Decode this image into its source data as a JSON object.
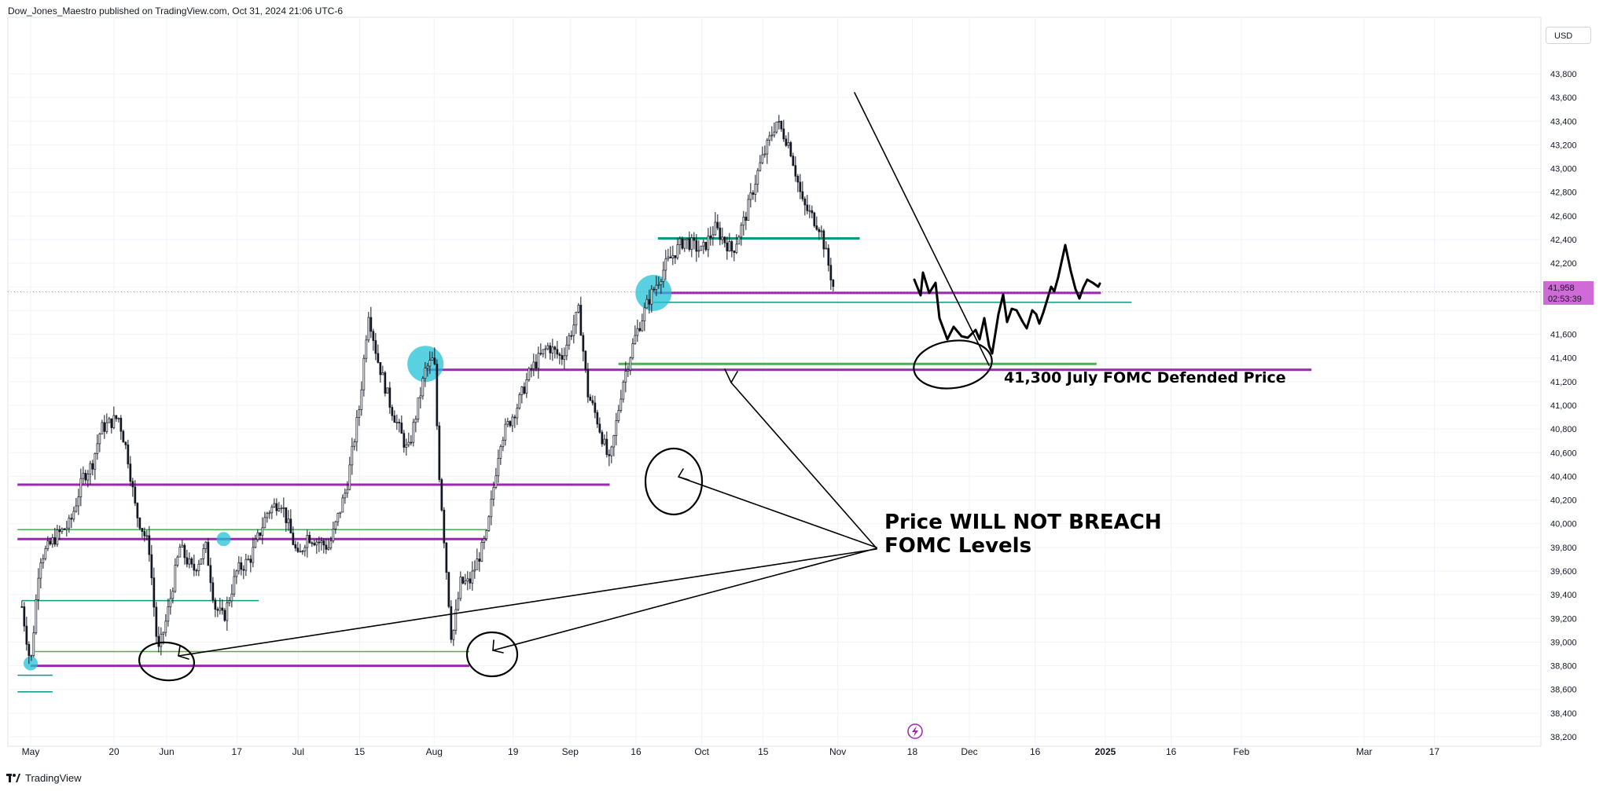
{
  "header": {
    "text": "Dow_Jones_Maestro published on TradingView.com, Oct 31, 2024 21:06 UTC-6"
  },
  "footer": {
    "brand": "TradingView"
  },
  "toolbar": {
    "currency": "USD"
  },
  "last_price": {
    "price": "41,958",
    "countdown": "02:53:39"
  },
  "annotations": {
    "fomc_label": "41,300   July FOMC Defended Price",
    "breach_line1": "Price WILL NOT BREACH",
    "breach_line2": "FOMC Levels"
  },
  "colors": {
    "purple": "#9c27b0",
    "green": "#4caf50",
    "teal": "#089981",
    "cyan": "#22c1d6",
    "ink": "#000000",
    "candle": "#131722",
    "price_box": "#d06ad6"
  },
  "chart_data": {
    "type": "candlestick",
    "ylim": [
      38200,
      44000
    ],
    "y_ticks": [
      43800,
      43600,
      43400,
      43200,
      43000,
      42800,
      42600,
      42400,
      42200,
      42000,
      41800,
      41600,
      41400,
      41200,
      41000,
      40800,
      40600,
      40400,
      40200,
      40000,
      39800,
      39600,
      39400,
      39200,
      39000,
      38800,
      38600,
      38400,
      38200
    ],
    "y_tick_labels": [
      "43,800",
      "43,600",
      "43,400",
      "43,200",
      "43,000",
      "42,800",
      "42,600",
      "42,400",
      "42,200",
      "",
      "",
      "41,600",
      "41,400",
      "41,200",
      "41,000",
      "40,800",
      "40,600",
      "40,400",
      "40,200",
      "40,000",
      "39,800",
      "39,600",
      "39,400",
      "39,200",
      "39,000",
      "38,800",
      "38,600",
      "38,400",
      "38,200"
    ],
    "x_labels": [
      {
        "text": "May",
        "date": "2024-05-01"
      },
      {
        "text": "20",
        "date": "2024-05-20"
      },
      {
        "text": "Jun",
        "date": "2024-06-01"
      },
      {
        "text": "17",
        "date": "2024-06-17"
      },
      {
        "text": "Jul",
        "date": "2024-07-01"
      },
      {
        "text": "15",
        "date": "2024-07-15"
      },
      {
        "text": "Aug",
        "date": "2024-08-01"
      },
      {
        "text": "19",
        "date": "2024-08-19"
      },
      {
        "text": "Sep",
        "date": "2024-09-01"
      },
      {
        "text": "16",
        "date": "2024-09-16"
      },
      {
        "text": "Oct",
        "date": "2024-10-01"
      },
      {
        "text": "15",
        "date": "2024-10-15"
      },
      {
        "text": "Nov",
        "date": "2024-11-01"
      },
      {
        "text": "18",
        "date": "2024-11-18"
      },
      {
        "text": "Dec",
        "date": "2024-12-01"
      },
      {
        "text": "16",
        "date": "2024-12-16"
      },
      {
        "text": "2025",
        "date": "2025-01-01"
      },
      {
        "text": "16",
        "date": "2025-01-16"
      },
      {
        "text": "Feb",
        "date": "2025-02-01"
      },
      {
        "text": "Mar",
        "date": "2025-03-01"
      },
      {
        "text": "17",
        "date": "2025-03-17"
      }
    ],
    "last_price": 41958,
    "price_path": [
      [
        "2024-04-29",
        39300
      ],
      [
        "2024-05-01",
        38800
      ],
      [
        "2024-05-03",
        39700
      ],
      [
        "2024-05-07",
        39900
      ],
      [
        "2024-05-10",
        40000
      ],
      [
        "2024-05-13",
        40400
      ],
      [
        "2024-05-15",
        40500
      ],
      [
        "2024-05-17",
        40800
      ],
      [
        "2024-05-21",
        40900
      ],
      [
        "2024-05-23",
        40600
      ],
      [
        "2024-05-25",
        40100
      ],
      [
        "2024-05-28",
        39800
      ],
      [
        "2024-05-30",
        38900
      ],
      [
        "2024-06-01",
        39200
      ],
      [
        "2024-06-04",
        39800
      ],
      [
        "2024-06-07",
        39600
      ],
      [
        "2024-06-10",
        39800
      ],
      [
        "2024-06-12",
        39300
      ],
      [
        "2024-06-14",
        39200
      ],
      [
        "2024-06-17",
        39600
      ],
      [
        "2024-06-20",
        39700
      ],
      [
        "2024-06-24",
        40100
      ],
      [
        "2024-06-27",
        40200
      ],
      [
        "2024-07-01",
        39700
      ],
      [
        "2024-07-03",
        39900
      ],
      [
        "2024-07-08",
        39800
      ],
      [
        "2024-07-12",
        40300
      ],
      [
        "2024-07-15",
        41000
      ],
      [
        "2024-07-17",
        41800
      ],
      [
        "2024-07-19",
        41400
      ],
      [
        "2024-07-22",
        41000
      ],
      [
        "2024-07-26",
        40600
      ],
      [
        "2024-07-30",
        41300
      ],
      [
        "2024-08-01",
        41400
      ],
      [
        "2024-08-02",
        40500
      ],
      [
        "2024-08-05",
        39000
      ],
      [
        "2024-08-07",
        39500
      ],
      [
        "2024-08-09",
        39500
      ],
      [
        "2024-08-13",
        39900
      ],
      [
        "2024-08-16",
        40700
      ],
      [
        "2024-08-20",
        41000
      ],
      [
        "2024-08-23",
        41300
      ],
      [
        "2024-08-27",
        41500
      ],
      [
        "2024-08-30",
        41400
      ],
      [
        "2024-09-03",
        41800
      ],
      [
        "2024-09-05",
        41100
      ],
      [
        "2024-09-07",
        40900
      ],
      [
        "2024-09-10",
        40500
      ],
      [
        "2024-09-13",
        41200
      ],
      [
        "2024-09-16",
        41600
      ],
      [
        "2024-09-19",
        41900
      ],
      [
        "2024-09-23",
        42200
      ],
      [
        "2024-09-27",
        42400
      ],
      [
        "2024-10-01",
        42300
      ],
      [
        "2024-10-04",
        42500
      ],
      [
        "2024-10-08",
        42300
      ],
      [
        "2024-10-11",
        42600
      ],
      [
        "2024-10-14",
        43000
      ],
      [
        "2024-10-17",
        43300
      ],
      [
        "2024-10-18",
        43400
      ],
      [
        "2024-10-21",
        43200
      ],
      [
        "2024-10-24",
        42700
      ],
      [
        "2024-10-28",
        42500
      ],
      [
        "2024-10-31",
        42000
      ]
    ],
    "horizontal_levels": [
      {
        "price": 41300,
        "color": "purple",
        "from": "2024-07-30",
        "to": "2025-02-17",
        "width": 3
      },
      {
        "price": 41950,
        "color": "purple",
        "from": "2024-09-20",
        "to": "2024-12-31",
        "width": 3
      },
      {
        "price": 41350,
        "color": "green",
        "from": "2024-09-12",
        "to": "2024-12-30",
        "width": 3
      },
      {
        "price": 41870,
        "color": "teal",
        "from": "2024-09-20",
        "to": "2025-01-07",
        "width": 1.5
      },
      {
        "price": 42410,
        "color": "teal",
        "from": "2024-09-21",
        "to": "2024-11-06",
        "width": 3
      },
      {
        "price": 40330,
        "color": "purple",
        "from": "2024-04-28",
        "to": "2024-09-10",
        "width": 3
      },
      {
        "price": 39870,
        "color": "purple",
        "from": "2024-04-28",
        "to": "2024-08-13",
        "width": 3
      },
      {
        "price": 39950,
        "color": "green",
        "from": "2024-04-28",
        "to": "2024-08-13",
        "width": 1.5
      },
      {
        "price": 39350,
        "color": "teal",
        "from": "2024-04-29",
        "to": "2024-06-22",
        "width": 1.5
      },
      {
        "price": 38920,
        "color": "green",
        "from": "2024-05-02",
        "to": "2024-08-09",
        "width": 1.5
      },
      {
        "price": 38800,
        "color": "purple",
        "from": "2024-05-01",
        "to": "2024-08-09",
        "width": 3
      },
      {
        "price": 38720,
        "color": "teal",
        "from": "2024-04-28",
        "to": "2024-05-06",
        "width": 1.5
      },
      {
        "price": 38580,
        "color": "teal",
        "from": "2024-04-28",
        "to": "2024-05-06",
        "width": 1.5
      }
    ],
    "highlight_circles": [
      {
        "date": "2024-07-30",
        "price": 41350,
        "size": "large"
      },
      {
        "date": "2024-09-20",
        "price": 41950,
        "size": "large"
      },
      {
        "date": "2024-06-14",
        "price": 39870,
        "size": "small"
      },
      {
        "date": "2024-05-01",
        "price": 38820,
        "size": "small"
      }
    ]
  }
}
